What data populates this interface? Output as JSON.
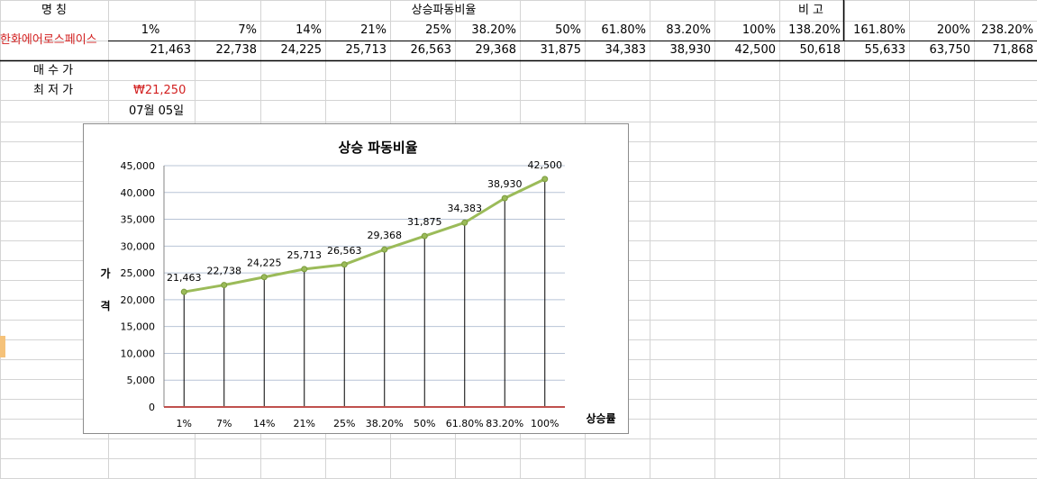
{
  "sheet": {
    "header_row": {
      "name_label": "명      칭",
      "ratio_label": "상승파동비율",
      "note_label": "비      고",
      "percents": [
        "1%",
        "7%",
        "14%",
        "21%",
        "25%",
        "38.20%",
        "50%",
        "61.80%",
        "83.20%",
        "100%",
        "138.20%",
        "161.80%",
        "200%",
        "238.20%"
      ]
    },
    "stock_name": "한화에어로스페이스",
    "prices": [
      "21,463",
      "22,738",
      "24,225",
      "25,713",
      "26,563",
      "29,368",
      "31,875",
      "34,383",
      "38,930",
      "42,500",
      "50,618",
      "55,633",
      "63,750",
      "71,868"
    ],
    "rows": {
      "buy_price_label": "매 수 가",
      "low_price_label": "최 저 가",
      "low_price_value": "₩21,250",
      "date_value": "07월 05일"
    }
  },
  "chart_data": {
    "type": "line",
    "title": "상승 파동비율",
    "ylabel": "가격",
    "xlabel": "상승률",
    "categories": [
      "1%",
      "7%",
      "14%",
      "21%",
      "25%",
      "38.20%",
      "50%",
      "61.80%",
      "83.20%",
      "100%"
    ],
    "values": [
      21463,
      22738,
      24225,
      25713,
      26563,
      29368,
      31875,
      34383,
      38930,
      42500
    ],
    "data_labels": [
      "21,463",
      "22,738",
      "24,225",
      "25,713",
      "26,563",
      "29,368",
      "31,875",
      "34,383",
      "38,930",
      "42,500"
    ],
    "ylim": [
      0,
      45000
    ],
    "yticks": [
      0,
      5000,
      10000,
      15000,
      20000,
      25000,
      30000,
      35000,
      40000,
      45000
    ],
    "ytick_labels": [
      "0",
      "5,000",
      "10,000",
      "15,000",
      "20,000",
      "25,000",
      "30,000",
      "35,000",
      "40,000",
      "45,000"
    ],
    "grid": true,
    "drop_lines": true,
    "colors": {
      "line": "#9bbb59",
      "drop": "#000000",
      "baseline": "#c0504d",
      "grid": "#b8c4d6"
    }
  }
}
